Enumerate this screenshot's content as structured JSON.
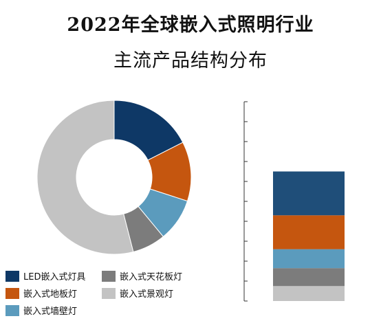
{
  "title_line1": "2022年全球嵌入式照明行业",
  "title_line2": "主流产品结构分布",
  "chart_data": {
    "type": "pie",
    "donut": true,
    "legend_position": "bottom-left",
    "slices": [
      {
        "name": "LED嵌入式灯具",
        "value": 17.5,
        "color": "#0e3866"
      },
      {
        "name": "嵌入式地板灯",
        "value": 12.5,
        "color": "#c5560f"
      },
      {
        "name": "嵌入式墙壁灯",
        "value": 9.0,
        "color": "#5b9bbd"
      },
      {
        "name": "嵌入式天花板灯",
        "value": 7.0,
        "color": "#7c7c7c"
      },
      {
        "name": "嵌入式景观灯",
        "value": 54.0,
        "color": "#c3c3c3"
      }
    ],
    "stacked_bar": {
      "order_bottom_to_top": [
        "嵌入式景观灯",
        "嵌入式天花板灯",
        "嵌入式墙壁灯",
        "嵌入式地板灯",
        "LED嵌入式灯具"
      ],
      "values": [
        7.5,
        9.0,
        9.5,
        17.0,
        22.0
      ],
      "colors": [
        "#c3c3c3",
        "#7c7c7c",
        "#5b9bbd",
        "#c5560f",
        "#1f4e79"
      ],
      "axis_max": 100,
      "tick_step": 10
    }
  },
  "legend": {
    "items": [
      {
        "label": "LED嵌入式灯具",
        "color": "#0e3866"
      },
      {
        "label": "嵌入式天花板灯",
        "color": "#7c7c7c"
      },
      {
        "label": "嵌入式地板灯",
        "color": "#c5560f"
      },
      {
        "label": "嵌入式景观灯",
        "color": "#c3c3c3"
      },
      {
        "label": "嵌入式墙壁灯",
        "color": "#5b9bbd"
      }
    ]
  }
}
